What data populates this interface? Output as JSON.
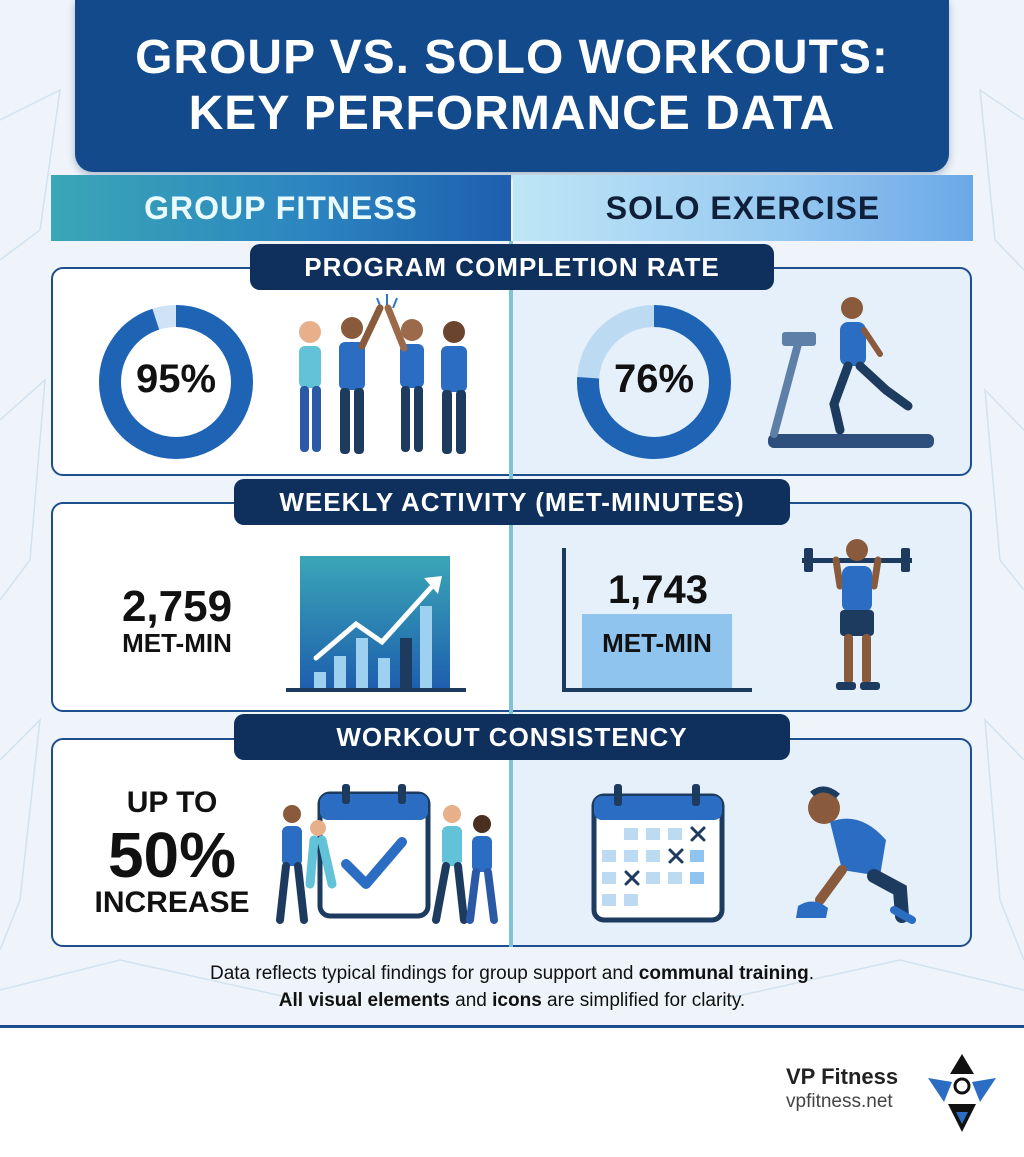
{
  "title": {
    "line1": "GROUP VS. SOLO WORKOUTS:",
    "line2": "KEY PERFORMANCE DATA"
  },
  "columns": {
    "left": "GROUP FITNESS",
    "right": "SOLO EXERCISE"
  },
  "sections": {
    "completion": {
      "label": "PROGRAM COMPLETION RATE",
      "group_value": "95%",
      "group_fraction": 0.95,
      "solo_value": "76%",
      "solo_fraction": 0.76
    },
    "activity": {
      "label": "WEEKLY ACTIVITY (MET-MINUTES)",
      "group_value": "2,759",
      "group_unit": "MET-MIN",
      "solo_value": "1,743",
      "solo_unit": "MET-MIN"
    },
    "consistency": {
      "label": "WORKOUT CONSISTENCY",
      "line1": "UP TO",
      "line2": "50%",
      "line3": "INCREASE"
    }
  },
  "footnote": {
    "l1a": "Data reflects typical findings for group support and ",
    "l1b": "communal training",
    "l1c": ".",
    "l2a": "All visual elements",
    "l2b": " and ",
    "l2c": "icons",
    "l2d": " are simplified for clarity."
  },
  "brand": {
    "name": "VP Fitness",
    "url": "vpfitness.net"
  },
  "colors": {
    "primary": "#124a8c",
    "dark": "#0f2f5c",
    "accent": "#3aa6b6",
    "light": "#95c8f0"
  }
}
